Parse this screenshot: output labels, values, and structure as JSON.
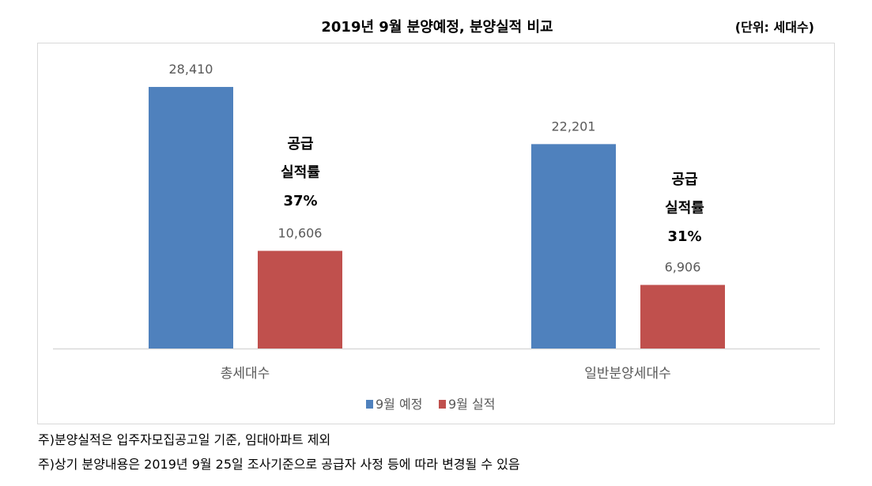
{
  "chart_data": {
    "type": "bar",
    "title": "2019년 9월 분양예정, 분양실적 비교",
    "unit_label": "(단위: 세대수)",
    "categories": [
      "총세대수",
      "일반분양세대수"
    ],
    "series": [
      {
        "name": "9월 예정",
        "values": [
          28410,
          22201
        ],
        "labels": [
          "28,410",
          "22,201"
        ],
        "color": "#4f81bd"
      },
      {
        "name": "9월 실적",
        "values": [
          10606,
          6906
        ],
        "labels": [
          "10,606",
          "6,906"
        ],
        "color": "#c0504d"
      }
    ],
    "annotations": [
      {
        "lines": [
          "공급",
          "실적률",
          "37%"
        ]
      },
      {
        "lines": [
          "공급",
          "실적률",
          "31%"
        ]
      }
    ],
    "ylim": [
      0,
      30000
    ],
    "grid": false,
    "legend": "bottom"
  },
  "notes": [
    "주)분양실적은 입주자모집공고일 기준, 임대아파트 제외",
    "주)상기 분양내용은 2019년 9월 25일 조사기준으로 공급자 사정 등에 따라 변경될 수 있음"
  ]
}
